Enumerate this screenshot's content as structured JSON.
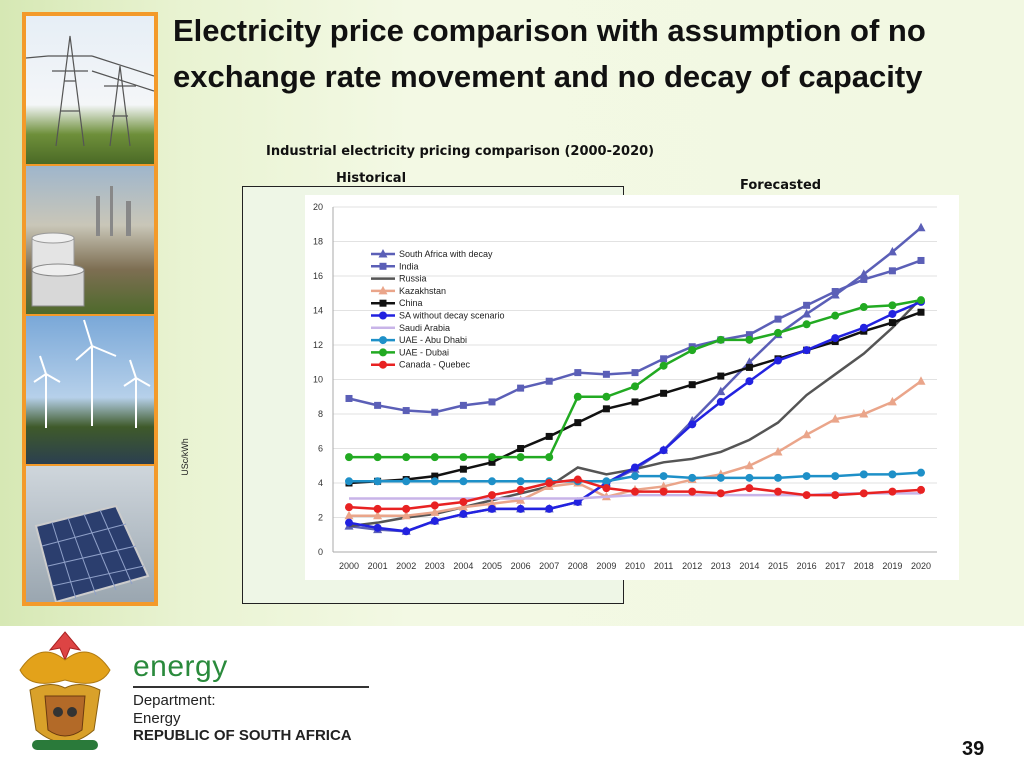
{
  "slide": {
    "title": "Electricity price comparison with assumption of no exchange rate movement and no decay of capacity",
    "chart_title": "Industrial electricity pricing comparison (2000-2020)",
    "historical_label": "Historical",
    "forecasted_label": "Forecasted",
    "page_number": "39"
  },
  "footer": {
    "energy": "energy",
    "department_line1": "Department:",
    "department_line2": "Energy",
    "republic": "REPUBLIC OF SOUTH AFRICA"
  },
  "chart_data": {
    "type": "line",
    "title": "Industrial electricity pricing comparison (2000-2020)",
    "xlabel": "",
    "ylabel": "USc/kWh",
    "ylim": [
      0,
      20
    ],
    "yticks": [
      0,
      2,
      4,
      6,
      8,
      10,
      12,
      14,
      16,
      18,
      20
    ],
    "grid": true,
    "legend": "upper-left",
    "categories": [
      "2000",
      "2001",
      "2002",
      "2003",
      "2004",
      "2005",
      "2006",
      "2007",
      "2008",
      "2009",
      "2010",
      "2011",
      "2012",
      "2013",
      "2014",
      "2015",
      "2016",
      "2017",
      "2018",
      "2019",
      "2020"
    ],
    "series": [
      {
        "name": "South Africa with decay",
        "color": "#5b5fb7",
        "marker": "triangle",
        "values": [
          1.5,
          1.3,
          1.2,
          1.8,
          2.2,
          2.5,
          2.5,
          2.5,
          2.9,
          4.0,
          4.8,
          5.9,
          7.6,
          9.3,
          11.0,
          12.6,
          13.8,
          14.9,
          16.1,
          17.4,
          18.8
        ]
      },
      {
        "name": "India",
        "color": "#5b5fb7",
        "marker": "square",
        "values": [
          8.9,
          8.5,
          8.2,
          8.1,
          8.5,
          8.7,
          9.5,
          9.9,
          10.4,
          10.3,
          10.4,
          11.2,
          11.9,
          12.3,
          12.6,
          13.5,
          14.3,
          15.1,
          15.8,
          16.3,
          16.9
        ]
      },
      {
        "name": "Russia",
        "color": "#555555",
        "marker": "none",
        "values": [
          1.5,
          1.7,
          2.0,
          2.2,
          2.6,
          3.0,
          3.4,
          3.8,
          4.9,
          4.5,
          4.8,
          5.2,
          5.4,
          5.8,
          6.5,
          7.5,
          9.1,
          10.3,
          11.5,
          13.0,
          14.7
        ]
      },
      {
        "name": "Kazakhstan",
        "color": "#eaa58a",
        "marker": "triangle",
        "values": [
          2.1,
          2.1,
          2.1,
          2.3,
          2.6,
          2.8,
          3.0,
          3.8,
          4.0,
          3.2,
          3.6,
          3.8,
          4.2,
          4.5,
          5.0,
          5.8,
          6.8,
          7.7,
          8.0,
          8.7,
          9.9
        ]
      },
      {
        "name": "China",
        "color": "#111111",
        "marker": "square",
        "values": [
          4.0,
          4.1,
          4.2,
          4.4,
          4.8,
          5.2,
          6.0,
          6.7,
          7.5,
          8.3,
          8.7,
          9.2,
          9.7,
          10.2,
          10.7,
          11.2,
          11.7,
          12.2,
          12.8,
          13.3,
          13.9
        ]
      },
      {
        "name": "SA without decay scenario",
        "color": "#2222e0",
        "marker": "circle",
        "values": [
          1.7,
          1.4,
          1.2,
          1.8,
          2.2,
          2.5,
          2.5,
          2.5,
          2.9,
          4.0,
          4.9,
          5.9,
          7.4,
          8.7,
          9.9,
          11.1,
          11.7,
          12.4,
          13.0,
          13.8,
          14.5
        ]
      },
      {
        "name": "Saudi Arabia",
        "color": "#c8b4e8",
        "marker": "none",
        "values": [
          3.1,
          3.1,
          3.1,
          3.1,
          3.1,
          3.1,
          3.1,
          3.1,
          3.1,
          3.2,
          3.3,
          3.3,
          3.3,
          3.3,
          3.3,
          3.3,
          3.3,
          3.4,
          3.4,
          3.4,
          3.4
        ]
      },
      {
        "name": "UAE - Abu Dhabi",
        "color": "#1e90c8",
        "marker": "circle",
        "values": [
          4.1,
          4.1,
          4.1,
          4.1,
          4.1,
          4.1,
          4.1,
          4.1,
          4.1,
          4.1,
          4.4,
          4.4,
          4.3,
          4.3,
          4.3,
          4.3,
          4.4,
          4.4,
          4.5,
          4.5,
          4.6
        ]
      },
      {
        "name": "UAE - Dubai",
        "color": "#22aa22",
        "marker": "circle",
        "values": [
          5.5,
          5.5,
          5.5,
          5.5,
          5.5,
          5.5,
          5.5,
          5.5,
          9.0,
          9.0,
          9.6,
          10.8,
          11.7,
          12.3,
          12.3,
          12.7,
          13.2,
          13.7,
          14.2,
          14.3,
          14.6
        ]
      },
      {
        "name": "Canada - Quebec",
        "color": "#e82222",
        "marker": "circle",
        "values": [
          2.6,
          2.5,
          2.5,
          2.7,
          2.9,
          3.3,
          3.6,
          4.0,
          4.2,
          3.7,
          3.5,
          3.5,
          3.5,
          3.4,
          3.7,
          3.5,
          3.3,
          3.3,
          3.4,
          3.5,
          3.6
        ]
      }
    ]
  }
}
